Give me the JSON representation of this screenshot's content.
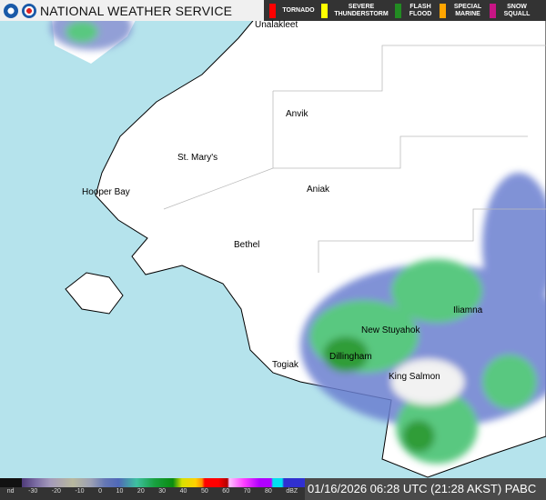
{
  "header": {
    "title": "NATIONAL WEATHER SERVICE",
    "logos": [
      "noaa-logo",
      "nws-logo"
    ]
  },
  "warnings": [
    {
      "label": "TORNADO",
      "color": "#ff0000"
    },
    {
      "label": "SEVERE THUNDERSTORM",
      "color": "#ffff00"
    },
    {
      "label": "FLASH FLOOD",
      "color": "#228b22"
    },
    {
      "label": "SPECIAL MARINE",
      "color": "#ffa500"
    },
    {
      "label": "SNOW SQUALL",
      "color": "#c71585"
    }
  ],
  "cities": [
    "Unalakleet",
    "Anvik",
    "St. Mary's",
    "Hooper Bay",
    "Aniak",
    "Bethel",
    "New Stuyahok",
    "Iliamna",
    "Dillingham",
    "Togiak",
    "King Salmon"
  ],
  "scale": {
    "ticks": [
      "nd",
      "-30",
      "-20",
      "-10",
      "0",
      "10",
      "20",
      "30",
      "40",
      "50",
      "60",
      "70",
      "80",
      "dBZ"
    ]
  },
  "timestamp": "01/16/2026 06:28 UTC (21:28 AKST) PABC",
  "colors": {
    "water": "#b5e3ec",
    "land": "#ffffff"
  }
}
